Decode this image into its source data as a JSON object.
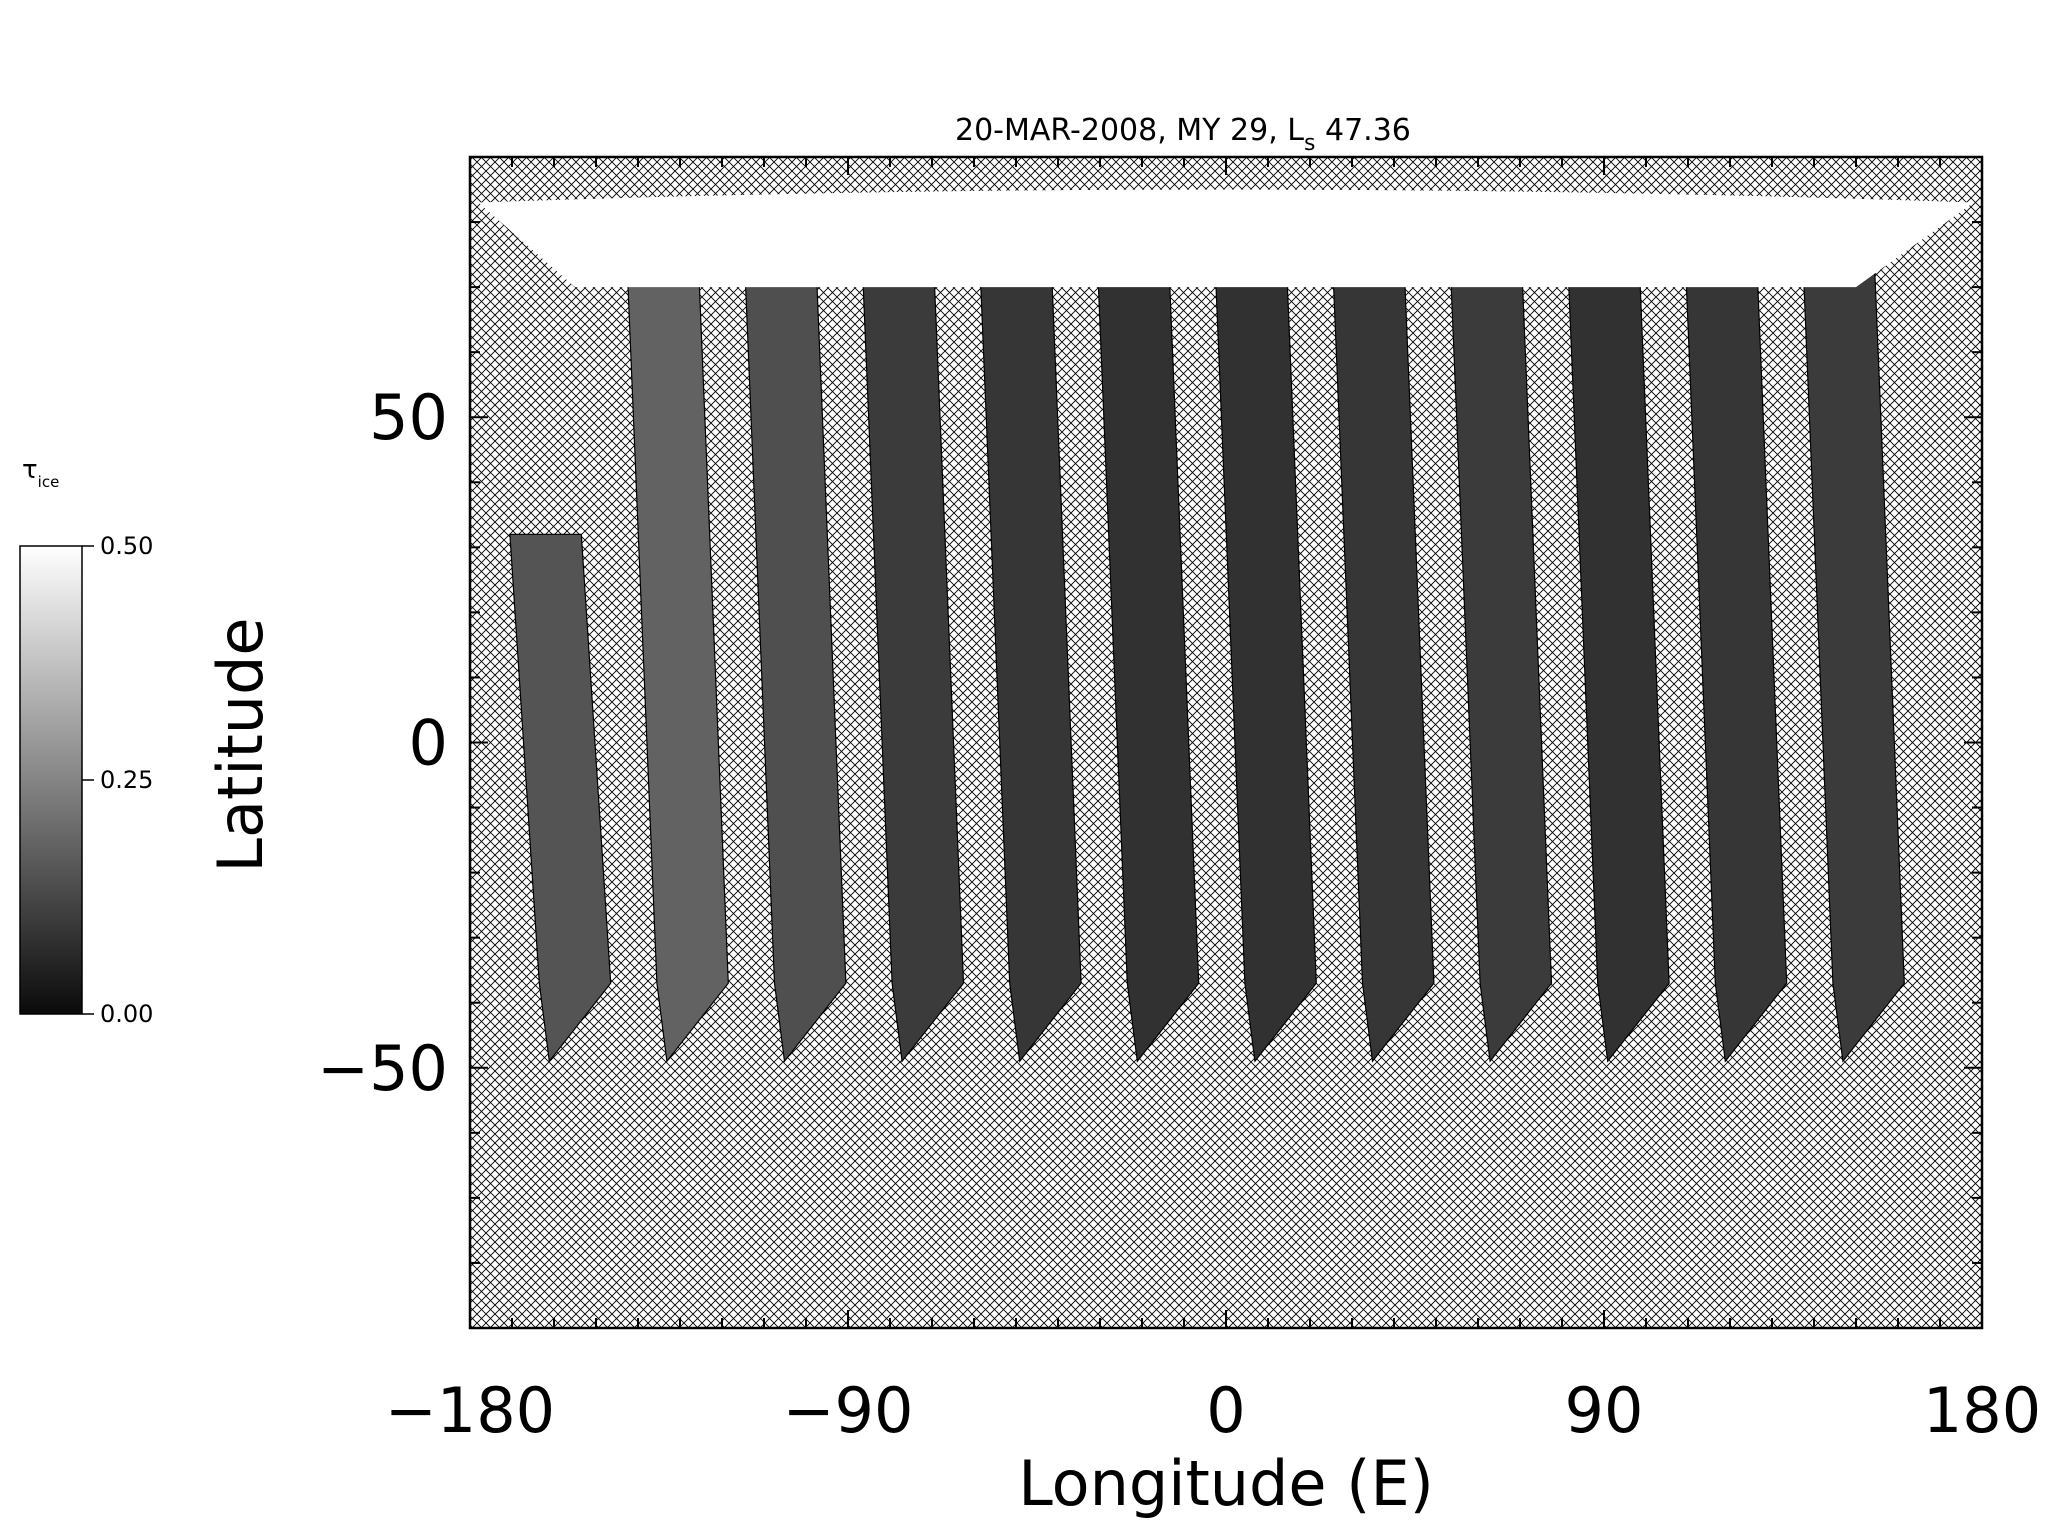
{
  "chart_data": {
    "type": "heatmap",
    "title": "20-MAR-2008, MY 29,  L",
    "title_sub": "s",
    "title_tail": " 47.36",
    "xlabel": "Longitude (E)",
    "ylabel": "Latitude",
    "xlim": [
      -180,
      180
    ],
    "ylim": [
      -90,
      90
    ],
    "xticks": [
      -180,
      -90,
      0,
      90,
      180
    ],
    "xtick_labels": [
      "−180",
      "−90",
      "0",
      "90",
      "180"
    ],
    "yticks": [
      50,
      0,
      -50
    ],
    "ytick_labels": [
      "50",
      "0",
      "−50"
    ],
    "colorbar": {
      "label": "τ",
      "label_sub": "ice",
      "range": [
        0.0,
        0.5
      ],
      "ticks": [
        0.5,
        0.25,
        0.0
      ],
      "tick_labels": [
        "0.50",
        "0.25",
        "0.00"
      ],
      "colormap": "grayscale"
    },
    "swaths": [
      {
        "lon_south": -155,
        "lon_north": -162,
        "lat_min": -49,
        "lat_max": 32,
        "mean_tau": 0.15
      },
      {
        "lon_south": -127,
        "lon_north": -134,
        "lat_min": -49,
        "lat_max": 72,
        "mean_tau": 0.18
      },
      {
        "lon_south": -99,
        "lon_north": -106,
        "lat_min": -49,
        "lat_max": 72,
        "mean_tau": 0.14
      },
      {
        "lon_south": -71,
        "lon_north": -78,
        "lat_min": -49,
        "lat_max": 72,
        "mean_tau": 0.1
      },
      {
        "lon_south": -43,
        "lon_north": -50,
        "lat_min": -49,
        "lat_max": 72,
        "mean_tau": 0.09
      },
      {
        "lon_south": -15,
        "lon_north": -22,
        "lat_min": -49,
        "lat_max": 72,
        "mean_tau": 0.08
      },
      {
        "lon_south": 13,
        "lon_north": 6,
        "lat_min": -49,
        "lat_max": 72,
        "mean_tau": 0.08
      },
      {
        "lon_south": 41,
        "lon_north": 34,
        "lat_min": -49,
        "lat_max": 72,
        "mean_tau": 0.09
      },
      {
        "lon_south": 69,
        "lon_north": 62,
        "lat_min": -49,
        "lat_max": 72,
        "mean_tau": 0.1
      },
      {
        "lon_south": 97,
        "lon_north": 90,
        "lat_min": -49,
        "lat_max": 72,
        "mean_tau": 0.08
      },
      {
        "lon_south": 125,
        "lon_north": 118,
        "lat_min": -49,
        "lat_max": 72,
        "mean_tau": 0.09
      },
      {
        "lon_south": 153,
        "lon_north": 146,
        "lat_min": -49,
        "lat_max": 72,
        "mean_tau": 0.1
      }
    ],
    "polar_cap": {
      "lat_min": 70,
      "lat_max": 85,
      "tau": 0.5
    }
  }
}
